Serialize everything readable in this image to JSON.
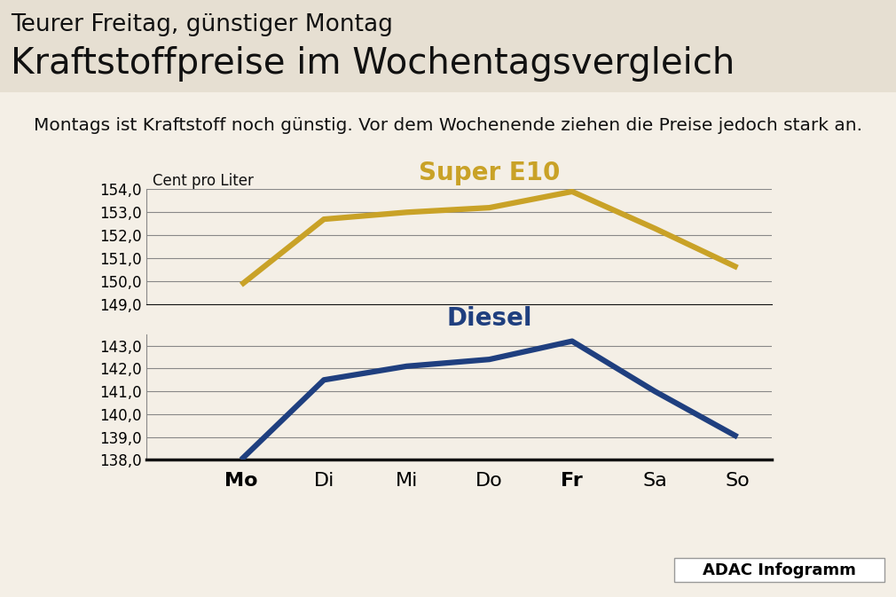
{
  "header": {
    "kicker": "Teurer Freitag, günstiger Montag",
    "title": "Kraftstoffpreise im Wochentagsvergleich",
    "subtitle": "Montags ist Kraftstoff noch günstig. Vor dem Wochenende ziehen die Preise jedoch stark an."
  },
  "source": "ADAC Infogramm",
  "chart_data": [
    {
      "type": "line",
      "y_label": "Cent pro Liter",
      "categories": [
        "Mo",
        "Di",
        "Mi",
        "Do",
        "Fr",
        "Sa",
        "So"
      ],
      "series": [
        {
          "name": "Super E10",
          "color": "#c9a227",
          "values": [
            149.85,
            152.7,
            153.0,
            153.2,
            153.9,
            152.3,
            150.6
          ]
        }
      ],
      "ylim": [
        149,
        154
      ],
      "yticks": [
        {
          "value": 149,
          "label": "149,0"
        },
        {
          "value": 150,
          "label": "150,0"
        },
        {
          "value": 151,
          "label": "151,0"
        },
        {
          "value": 152,
          "label": "152,0"
        },
        {
          "value": 153,
          "label": "153,0"
        },
        {
          "value": 154,
          "label": "154,0"
        }
      ],
      "grid": true,
      "tick_labels": "y"
    },
    {
      "type": "line",
      "categories": [
        "Mo",
        "Di",
        "Mi",
        "Do",
        "Fr",
        "Sa",
        "So"
      ],
      "series": [
        {
          "name": "Diesel",
          "color": "#1f3f7f",
          "values": [
            138.0,
            141.5,
            142.1,
            142.4,
            143.2,
            141.0,
            139.0
          ]
        }
      ],
      "ylim": [
        138,
        143.5
      ],
      "yticks": [
        {
          "value": 138,
          "label": "138,0"
        },
        {
          "value": 139,
          "label": "139,0"
        },
        {
          "value": 140,
          "label": "140,0"
        },
        {
          "value": 141,
          "label": "141,0"
        },
        {
          "value": 142,
          "label": "142,0"
        },
        {
          "value": 143,
          "label": "143,0"
        }
      ],
      "grid": true,
      "tick_labels": true
    }
  ]
}
